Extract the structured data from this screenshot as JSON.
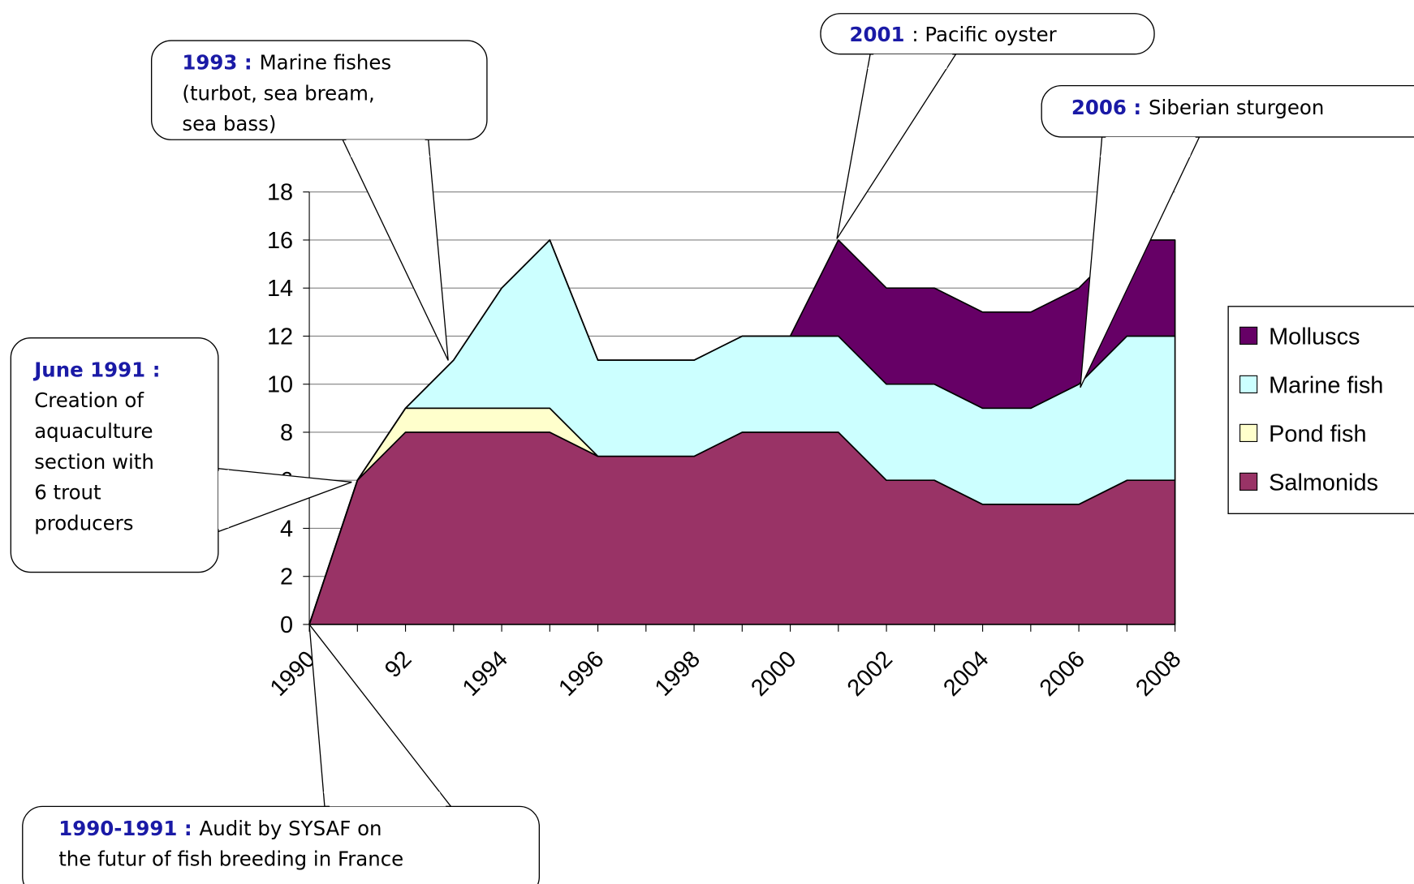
{
  "chart_data": {
    "type": "stacked_area",
    "categories": [
      "1990",
      null,
      "92",
      null,
      "1994",
      null,
      "1996",
      null,
      "1998",
      null,
      "2000",
      null,
      "2002",
      null,
      "2004",
      null,
      "2006",
      null,
      "2008"
    ],
    "series": [
      {
        "name": "Salmonids",
        "color": "#993366",
        "values": [
          0,
          6,
          8,
          8,
          8,
          8,
          7,
          7,
          7,
          8,
          8,
          8,
          6,
          6,
          5,
          5,
          5,
          6,
          6
        ]
      },
      {
        "name": "Pond fish",
        "color": "#ffffcc",
        "values": [
          0,
          0,
          1,
          1,
          1,
          1,
          0,
          0,
          0,
          0,
          0,
          0,
          0,
          0,
          0,
          0,
          0,
          0,
          0
        ]
      },
      {
        "name": "Marine fish",
        "color": "#ccffff",
        "values": [
          0,
          0,
          0,
          2,
          5,
          7,
          4,
          4,
          4,
          4,
          4,
          4,
          4,
          4,
          4,
          4,
          5,
          6,
          6
        ]
      },
      {
        "name": "Molluscs",
        "color": "#660066",
        "values": [
          0,
          0,
          0,
          0,
          0,
          0,
          0,
          0,
          0,
          0,
          0,
          4,
          4,
          4,
          4,
          4,
          4,
          4,
          4
        ]
      }
    ],
    "ylim": [
      0,
      18
    ],
    "yticks": [
      0,
      2,
      4,
      6,
      8,
      10,
      12,
      14,
      16,
      18
    ],
    "grid": true,
    "legend": "right",
    "annotations": [
      {
        "label": "1993 :",
        "lines": [
          "Marine fishes",
          "(turbot, sea bream,",
          "sea bass)"
        ]
      },
      {
        "label": "2001",
        "lines": [
          ": Pacific oyster"
        ]
      },
      {
        "label": "2006 :",
        "lines": [
          "Siberian sturgeon"
        ]
      },
      {
        "label": "June 1991 :",
        "lines": [
          "Creation of",
          "aquaculture",
          "section with",
          "6 trout",
          "producers"
        ]
      },
      {
        "label": "1990-1991 :",
        "lines": [
          "Audit by SYSAF on",
          "the futur of fish breeding in France"
        ]
      }
    ]
  }
}
